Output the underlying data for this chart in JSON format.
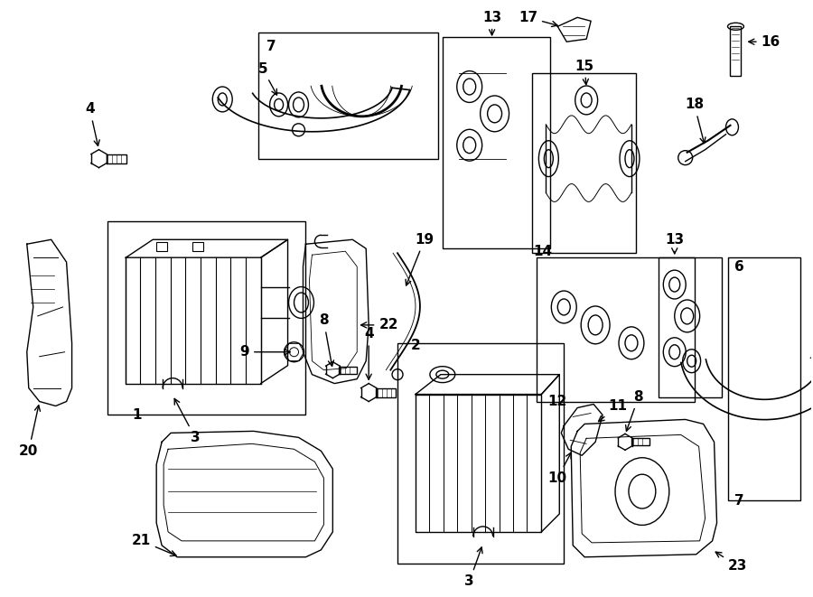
{
  "bg_color": "#ffffff",
  "line_color": "#000000",
  "fig_width": 9.0,
  "fig_height": 6.61,
  "dpi": 100,
  "xlim": [
    0,
    900
  ],
  "ylim": [
    0,
    661
  ]
}
